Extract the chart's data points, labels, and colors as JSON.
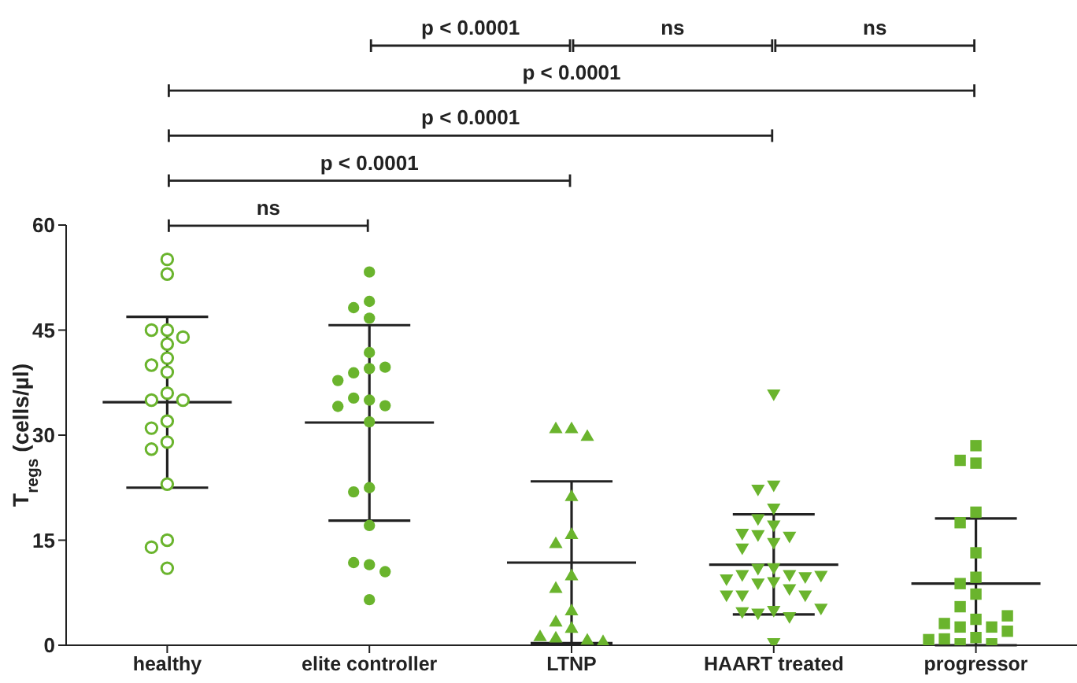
{
  "chart_data": {
    "type": "scatter",
    "ylabel": "T$_{regs}$ (cells/µl)",
    "categories": [
      "healthy",
      "elite controller",
      "LTNP",
      "HAART treated",
      "progressor"
    ],
    "ylim": [
      0,
      60
    ],
    "yticks": [
      0,
      15,
      30,
      45,
      60
    ],
    "grid": false,
    "legend": false,
    "annotations": [
      "p < 0.0001",
      "ns",
      "ns",
      "p < 0.0001",
      "p < 0.0001",
      "p < 0.0001",
      "ns"
    ],
    "series": [
      {
        "marker": "circle-open",
        "color": "#6ab42d",
        "x": [
          "healthy",
          "healthy",
          "healthy",
          "healthy",
          "healthy",
          "healthy",
          "healthy",
          "healthy",
          "healthy",
          "healthy",
          "healthy",
          "healthy",
          "healthy",
          "healthy",
          "healthy",
          "healthy",
          "healthy",
          "healthy",
          "healthy",
          "healthy"
        ],
        "values": [
          55.1,
          53,
          45,
          45,
          44,
          43,
          41,
          40,
          39,
          36,
          35,
          35,
          32,
          31,
          29,
          28,
          23,
          15,
          14,
          11
        ]
      },
      {
        "marker": "circle",
        "color": "#6ab42d",
        "x": [
          "elite controller",
          "elite controller",
          "elite controller",
          "elite controller",
          "elite controller",
          "elite controller",
          "elite controller",
          "elite controller",
          "elite controller",
          "elite controller",
          "elite controller",
          "elite controller",
          "elite controller",
          "elite controller",
          "elite controller",
          "elite controller",
          "elite controller",
          "elite controller",
          "elite controller",
          "elite controller",
          "elite controller"
        ],
        "values": [
          53.3,
          49.1,
          48.2,
          46.7,
          41.8,
          39.5,
          38.9,
          39.7,
          37.8,
          35,
          35.3,
          34.2,
          34.1,
          31.9,
          22.5,
          21.9,
          17.1,
          11.5,
          11.8,
          10.5,
          6.5
        ]
      },
      {
        "marker": "triangle",
        "color": "#6ab42d",
        "x": [
          "LTNP",
          "LTNP",
          "LTNP",
          "LTNP",
          "LTNP",
          "LTNP",
          "LTNP",
          "LTNP",
          "LTNP",
          "LTNP",
          "LTNP",
          "LTNP",
          "LTNP",
          "LTNP",
          "LTNP"
        ],
        "values": [
          31,
          31,
          29.9,
          21.3,
          15.9,
          14.6,
          10,
          8.2,
          5,
          3.4,
          2.5,
          1.1,
          0.8,
          1.3,
          0.6
        ]
      },
      {
        "marker": "triangle-down",
        "color": "#6ab42d",
        "x": [
          "HAART treated",
          "HAART treated",
          "HAART treated",
          "HAART treated",
          "HAART treated",
          "HAART treated",
          "HAART treated",
          "HAART treated",
          "HAART treated",
          "HAART treated",
          "HAART treated",
          "HAART treated",
          "HAART treated",
          "HAART treated",
          "HAART treated",
          "HAART treated",
          "HAART treated",
          "HAART treated",
          "HAART treated",
          "HAART treated",
          "HAART treated",
          "HAART treated",
          "HAART treated",
          "HAART treated",
          "HAART treated",
          "HAART treated",
          "HAART treated",
          "HAART treated",
          "HAART treated",
          "HAART treated"
        ],
        "values": [
          35.8,
          22.8,
          22.2,
          19.5,
          18,
          17.1,
          15.7,
          15.5,
          15.9,
          14.6,
          13.8,
          11,
          10.9,
          10,
          10,
          9,
          9.7,
          9.4,
          9.9,
          8.8,
          8,
          7.1,
          7.1,
          7.1,
          4.9,
          4.5,
          4,
          4.7,
          5.2,
          0.3
        ]
      },
      {
        "marker": "square",
        "color": "#6ab42d",
        "x": [
          "progressor",
          "progressor",
          "progressor",
          "progressor",
          "progressor",
          "progressor",
          "progressor",
          "progressor",
          "progressor",
          "progressor",
          "progressor",
          "progressor",
          "progressor",
          "progressor",
          "progressor",
          "progressor",
          "progressor",
          "progressor",
          "progressor",
          "progressor",
          "progressor"
        ],
        "values": [
          28.5,
          26,
          26.4,
          19,
          17.5,
          13.2,
          9.7,
          8.8,
          7.3,
          5.5,
          3.7,
          2.6,
          2.6,
          3.1,
          4.2,
          2,
          1.1,
          0.9,
          0.2,
          0.2,
          0.8
        ]
      },
      {
        "type": "box",
        "color": "#222222",
        "boxes": [
          {
            "low": 22.5,
            "q1": 34.7,
            "median": 34.7,
            "q3": 34.7,
            "high": 46.9
          },
          {
            "low": 17.8,
            "q1": 31.8,
            "median": 31.8,
            "q3": 31.8,
            "high": 45.7
          },
          {
            "low": 0.3,
            "q1": 11.8,
            "median": 11.8,
            "q3": 11.8,
            "high": 23.4
          },
          {
            "low": 4.4,
            "q1": 11.5,
            "median": 11.5,
            "q3": 11.5,
            "high": 18.7
          },
          {
            "low": 0,
            "q1": 8.8,
            "median": 8.8,
            "q3": 8.8,
            "high": 18.1
          }
        ]
      }
    ]
  }
}
